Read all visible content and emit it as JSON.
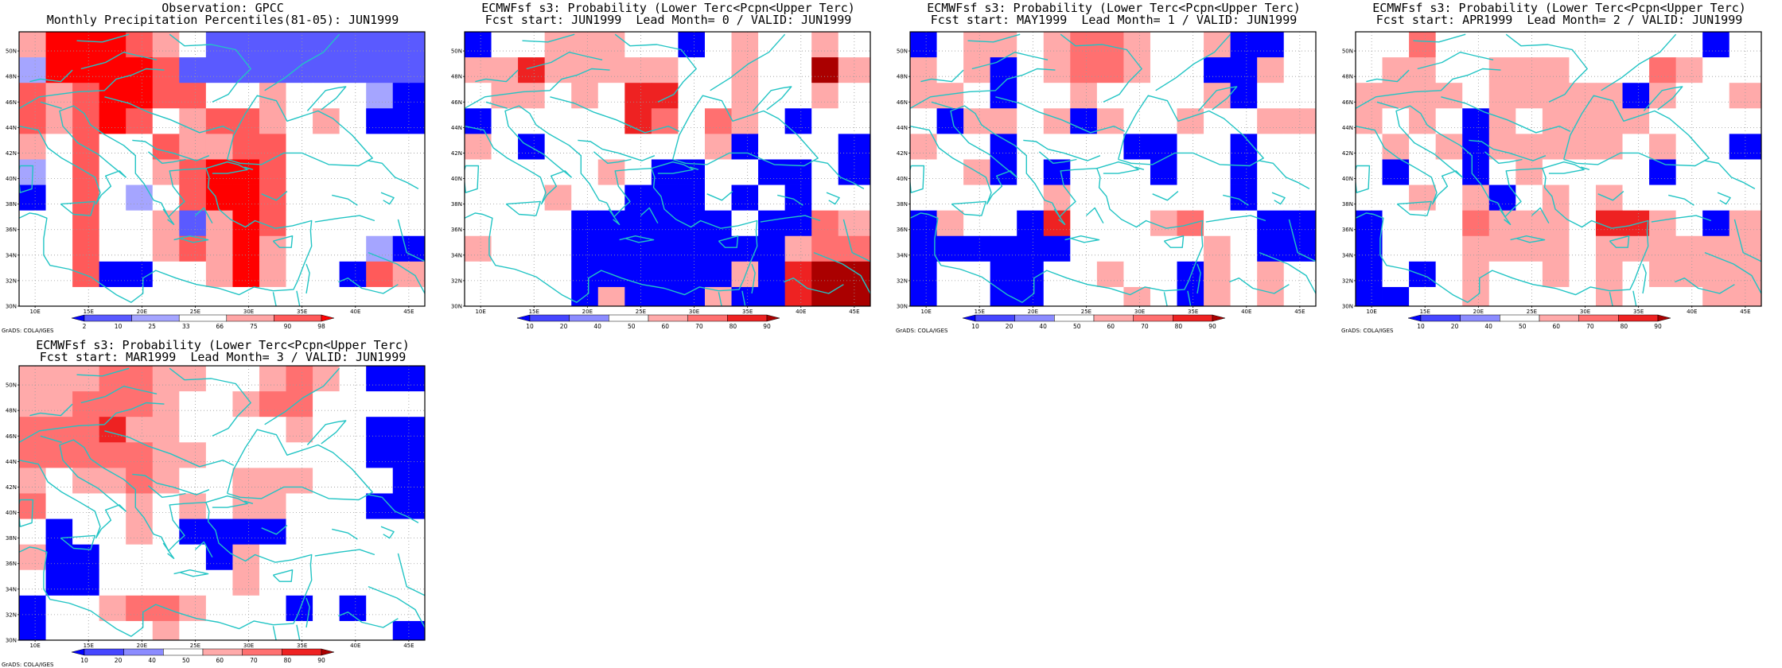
{
  "figure": {
    "credit": "GrADS: COLA/IGES",
    "lon_ticks": [
      "10E",
      "15E",
      "20E",
      "25E",
      "30E",
      "35E",
      "40E",
      "45E"
    ],
    "lat_ticks": [
      "30N",
      "32N",
      "34N",
      "36N",
      "38N",
      "40N",
      "42N",
      "44N",
      "46N",
      "48N",
      "50N"
    ],
    "extent": {
      "lon": [
        8.5,
        46.5
      ],
      "lat": [
        30,
        51.5
      ]
    },
    "grid_resolution_deg": 2.5,
    "colors": {
      "coast": "#22c4c4",
      "grid_dots": "#9a9a9a",
      "scale_obs": [
        "#0000ff",
        "#5a5aff",
        "#a5a5ff",
        "#ffffff",
        "#ffa5a5",
        "#ff5a5a",
        "#ff0000"
      ],
      "scale_prob": [
        "#0000ff",
        "#4646ff",
        "#8c8cff",
        "#ffffff",
        "#ffaaaa",
        "#ff7070",
        "#ee2222",
        "#aa0000"
      ]
    }
  },
  "panels": [
    {
      "id": "observation",
      "title_lines": [
        "Observation: GPCC",
        "Monthly Precipitation Percentiles(81-05): JUN1999"
      ],
      "colorbar_labels": [
        "2",
        "10",
        "25",
        "33",
        "66",
        "75",
        "90",
        "98"
      ],
      "scale": "scale_obs",
      "cells": [
        [
          4,
          6,
          6,
          6,
          5,
          4,
          3,
          1,
          1,
          1,
          1,
          1,
          1,
          1,
          1
        ],
        [
          2,
          6,
          6,
          6,
          6,
          5,
          1,
          1,
          1,
          1,
          1,
          1,
          1,
          1,
          1
        ],
        [
          5,
          4,
          5,
          6,
          6,
          5,
          5,
          3,
          3,
          4,
          3,
          3,
          3,
          2,
          0
        ],
        [
          5,
          4,
          5,
          6,
          5,
          3,
          4,
          5,
          5,
          4,
          3,
          4,
          3,
          0,
          0
        ],
        [
          4,
          3,
          5,
          3,
          3,
          5,
          4,
          4,
          5,
          5,
          3,
          3,
          3,
          3,
          3
        ],
        [
          2,
          3,
          5,
          3,
          3,
          4,
          5,
          6,
          6,
          5,
          3,
          3,
          3,
          3,
          3
        ],
        [
          0,
          3,
          5,
          3,
          2,
          3,
          5,
          6,
          6,
          5,
          3,
          3,
          3,
          3,
          3
        ],
        [
          3,
          3,
          5,
          3,
          3,
          4,
          1,
          4,
          6,
          5,
          3,
          3,
          3,
          3,
          3
        ],
        [
          3,
          3,
          5,
          3,
          3,
          4,
          5,
          4,
          6,
          4,
          3,
          3,
          3,
          2,
          0
        ],
        [
          3,
          3,
          5,
          0,
          0,
          3,
          3,
          4,
          6,
          4,
          3,
          3,
          0,
          5,
          4
        ],
        [
          3,
          3,
          3,
          3,
          3,
          3,
          3,
          3,
          3,
          3,
          3,
          3,
          3,
          3,
          3
        ]
      ]
    },
    {
      "id": "lead0",
      "title_lines": [
        "ECMWFsf s3: Probability (Lower Terc<Pcpn<Upper Terc)",
        "Fcst start: JUN1999  Lead Month= 0 / VALID: JUN1999"
      ],
      "colorbar_labels": [
        "10",
        "20",
        "40",
        "50",
        "60",
        "70",
        "80",
        "90"
      ],
      "scale": "scale_prob",
      "cells": [
        [
          0,
          3,
          3,
          4,
          4,
          4,
          3,
          3,
          0,
          3,
          4,
          3,
          3,
          4,
          3
        ],
        [
          4,
          4,
          6,
          4,
          4,
          4,
          4,
          4,
          3,
          3,
          4,
          3,
          3,
          7,
          4
        ],
        [
          3,
          4,
          4,
          3,
          4,
          3,
          6,
          6,
          3,
          3,
          4,
          3,
          3,
          4,
          3
        ],
        [
          0,
          3,
          3,
          3,
          3,
          3,
          6,
          5,
          3,
          5,
          4,
          3,
          0,
          3,
          3
        ],
        [
          4,
          3,
          0,
          3,
          3,
          3,
          3,
          3,
          3,
          4,
          0,
          3,
          3,
          3,
          0
        ],
        [
          3,
          3,
          3,
          3,
          3,
          4,
          3,
          0,
          0,
          3,
          3,
          0,
          0,
          3,
          0
        ],
        [
          3,
          3,
          3,
          4,
          3,
          3,
          0,
          0,
          0,
          3,
          0,
          3,
          0,
          3,
          3
        ],
        [
          3,
          3,
          3,
          3,
          0,
          0,
          0,
          0,
          0,
          0,
          3,
          0,
          0,
          5,
          4
        ],
        [
          4,
          3,
          3,
          3,
          0,
          0,
          0,
          0,
          0,
          0,
          0,
          0,
          4,
          5,
          5
        ],
        [
          3,
          3,
          3,
          3,
          0,
          0,
          0,
          0,
          0,
          0,
          4,
          0,
          6,
          7,
          7
        ],
        [
          3,
          3,
          3,
          3,
          0,
          4,
          0,
          0,
          0,
          4,
          0,
          0,
          6,
          7,
          7
        ]
      ]
    },
    {
      "id": "lead1",
      "title_lines": [
        "ECMWFsf s3: Probability (Lower Terc<Pcpn<Upper Terc)",
        "Fcst start: MAY1999  Lead Month= 1 / VALID: JUN1999"
      ],
      "colorbar_labels": [
        "10",
        "20",
        "40",
        "50",
        "60",
        "70",
        "80",
        "90"
      ],
      "scale": "scale_prob",
      "cells": [
        [
          0,
          3,
          4,
          4,
          3,
          4,
          5,
          5,
          4,
          3,
          3,
          4,
          0,
          0,
          3
        ],
        [
          4,
          3,
          4,
          0,
          3,
          4,
          5,
          5,
          4,
          3,
          3,
          0,
          0,
          4,
          3
        ],
        [
          4,
          4,
          3,
          0,
          3,
          3,
          4,
          3,
          3,
          3,
          3,
          4,
          0,
          3,
          3
        ],
        [
          3,
          0,
          4,
          4,
          3,
          4,
          0,
          4,
          3,
          3,
          4,
          3,
          3,
          4,
          4
        ],
        [
          4,
          3,
          3,
          0,
          3,
          3,
          3,
          3,
          0,
          0,
          3,
          3,
          0,
          3,
          3
        ],
        [
          3,
          3,
          4,
          0,
          3,
          0,
          3,
          3,
          3,
          0,
          3,
          3,
          0,
          3,
          3
        ],
        [
          3,
          3,
          3,
          3,
          3,
          4,
          3,
          3,
          3,
          3,
          3,
          3,
          0,
          3,
          3
        ],
        [
          0,
          4,
          3,
          3,
          0,
          6,
          3,
          3,
          3,
          4,
          5,
          3,
          3,
          0,
          0
        ],
        [
          0,
          0,
          0,
          0,
          0,
          0,
          3,
          3,
          3,
          3,
          3,
          4,
          3,
          0,
          0
        ],
        [
          0,
          3,
          3,
          0,
          0,
          3,
          3,
          4,
          3,
          3,
          0,
          4,
          3,
          4,
          3
        ],
        [
          0,
          3,
          3,
          0,
          0,
          3,
          3,
          3,
          4,
          3,
          0,
          4,
          3,
          4,
          3
        ]
      ]
    },
    {
      "id": "lead2",
      "title_lines": [
        "ECMWFsf s3: Probability (Lower Terc<Pcpn<Upper Terc)",
        "Fcst start: APR1999  Lead Month= 2 / VALID: JUN1999"
      ],
      "colorbar_labels": [
        "10",
        "20",
        "40",
        "50",
        "60",
        "70",
        "80",
        "90"
      ],
      "scale": "scale_prob",
      "cells": [
        [
          3,
          3,
          5,
          3,
          3,
          3,
          3,
          3,
          3,
          3,
          3,
          3,
          3,
          0,
          3
        ],
        [
          3,
          4,
          4,
          3,
          3,
          4,
          4,
          4,
          3,
          3,
          3,
          5,
          4,
          3,
          3
        ],
        [
          4,
          4,
          4,
          4,
          3,
          4,
          4,
          4,
          4,
          4,
          0,
          4,
          3,
          3,
          4
        ],
        [
          4,
          3,
          4,
          3,
          0,
          4,
          3,
          4,
          4,
          4,
          4,
          3,
          3,
          3,
          3
        ],
        [
          3,
          4,
          3,
          4,
          0,
          4,
          4,
          4,
          4,
          4,
          3,
          4,
          3,
          3,
          0
        ],
        [
          3,
          0,
          3,
          3,
          0,
          3,
          4,
          3,
          3,
          3,
          3,
          0,
          3,
          3,
          3
        ],
        [
          3,
          3,
          4,
          3,
          4,
          0,
          3,
          4,
          3,
          4,
          3,
          3,
          3,
          3,
          3
        ],
        [
          0,
          3,
          3,
          3,
          5,
          4,
          4,
          4,
          3,
          6,
          6,
          4,
          3,
          0,
          4
        ],
        [
          0,
          3,
          3,
          3,
          4,
          4,
          4,
          4,
          3,
          4,
          4,
          4,
          4,
          4,
          4
        ],
        [
          0,
          3,
          0,
          3,
          4,
          3,
          3,
          4,
          3,
          4,
          3,
          4,
          4,
          4,
          4
        ],
        [
          0,
          0,
          3,
          3,
          4,
          3,
          3,
          3,
          3,
          4,
          3,
          3,
          3,
          4,
          4
        ]
      ]
    },
    {
      "id": "lead3",
      "title_lines": [
        "ECMWFsf s3: Probability (Lower Terc<Pcpn<Upper Terc)",
        "Fcst start: MAR1999  Lead Month= 3 / VALID: JUN1999"
      ],
      "colorbar_labels": [
        "10",
        "20",
        "40",
        "50",
        "60",
        "70",
        "80",
        "90"
      ],
      "scale": "scale_prob",
      "cells": [
        [
          4,
          4,
          4,
          5,
          5,
          4,
          4,
          3,
          3,
          4,
          5,
          4,
          3,
          0,
          0
        ],
        [
          4,
          4,
          5,
          5,
          5,
          4,
          3,
          3,
          4,
          5,
          5,
          3,
          3,
          3,
          3
        ],
        [
          5,
          5,
          5,
          6,
          4,
          4,
          3,
          3,
          3,
          3,
          4,
          3,
          3,
          0,
          0
        ],
        [
          5,
          5,
          5,
          5,
          5,
          4,
          4,
          3,
          3,
          3,
          3,
          3,
          3,
          0,
          0
        ],
        [
          4,
          3,
          4,
          4,
          5,
          4,
          3,
          3,
          4,
          4,
          4,
          3,
          3,
          3,
          0
        ],
        [
          5,
          3,
          3,
          3,
          4,
          3,
          4,
          3,
          4,
          4,
          3,
          3,
          3,
          0,
          0
        ],
        [
          3,
          0,
          3,
          3,
          4,
          3,
          0,
          0,
          0,
          0,
          3,
          3,
          3,
          3,
          3
        ],
        [
          4,
          0,
          0,
          3,
          3,
          3,
          3,
          0,
          4,
          3,
          3,
          3,
          3,
          3,
          3
        ],
        [
          3,
          0,
          0,
          3,
          3,
          3,
          3,
          3,
          4,
          3,
          3,
          3,
          3,
          3,
          3
        ],
        [
          0,
          3,
          3,
          4,
          5,
          5,
          4,
          3,
          3,
          3,
          0,
          3,
          0,
          3,
          3
        ],
        [
          0,
          3,
          3,
          3,
          3,
          4,
          3,
          3,
          3,
          3,
          3,
          3,
          3,
          3,
          0
        ]
      ]
    }
  ]
}
